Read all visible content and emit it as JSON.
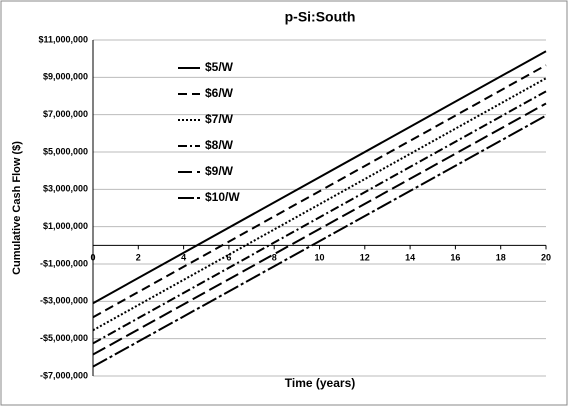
{
  "chart_data": {
    "type": "line",
    "title": "p-Si:South",
    "xlabel": "Time (years)",
    "ylabel": "Cumulative Cash Flow ($)",
    "x": [
      0,
      20
    ],
    "series": [
      {
        "name": "$5/W",
        "color": "#000000",
        "dash": "none",
        "values": [
          -3100000,
          10400000
        ]
      },
      {
        "name": "$6/W",
        "color": "#000000",
        "dash": "9,5",
        "values": [
          -3850000,
          9650000
        ]
      },
      {
        "name": "$7/W",
        "color": "#000000",
        "dash": "2,2",
        "values": [
          -4550000,
          8950000
        ]
      },
      {
        "name": "$8/W",
        "color": "#000000",
        "dash": "9,3,2,3",
        "values": [
          -5250000,
          8250000
        ]
      },
      {
        "name": "$9/W",
        "color": "#000000",
        "dash": "14,5",
        "values": [
          -5850000,
          7600000
        ]
      },
      {
        "name": "$10/W",
        "color": "#000000",
        "dash": "16,3,3,3",
        "values": [
          -6500000,
          6950000
        ]
      }
    ],
    "xlim": [
      0,
      20
    ],
    "xticks": [
      0,
      2,
      4,
      6,
      8,
      10,
      12,
      14,
      16,
      18,
      20
    ],
    "ylim": [
      -7000000,
      11000000
    ],
    "yticks": [
      {
        "value": -7000000,
        "label": "-$7,000,000"
      },
      {
        "value": -5000000,
        "label": "-$5,000,000"
      },
      {
        "value": -3000000,
        "label": "-$3,000,000"
      },
      {
        "value": -1000000,
        "label": "-$1,000,000"
      },
      {
        "value": 1000000,
        "label": "$1,000,000"
      },
      {
        "value": 3000000,
        "label": "$3,000,000"
      },
      {
        "value": 5000000,
        "label": "$5,000,000"
      },
      {
        "value": 7000000,
        "label": "$7,000,000"
      },
      {
        "value": 9000000,
        "label": "$9,000,000"
      },
      {
        "value": 11000000,
        "label": "$11,000,000"
      }
    ],
    "grid": true,
    "legend": "upper left"
  }
}
